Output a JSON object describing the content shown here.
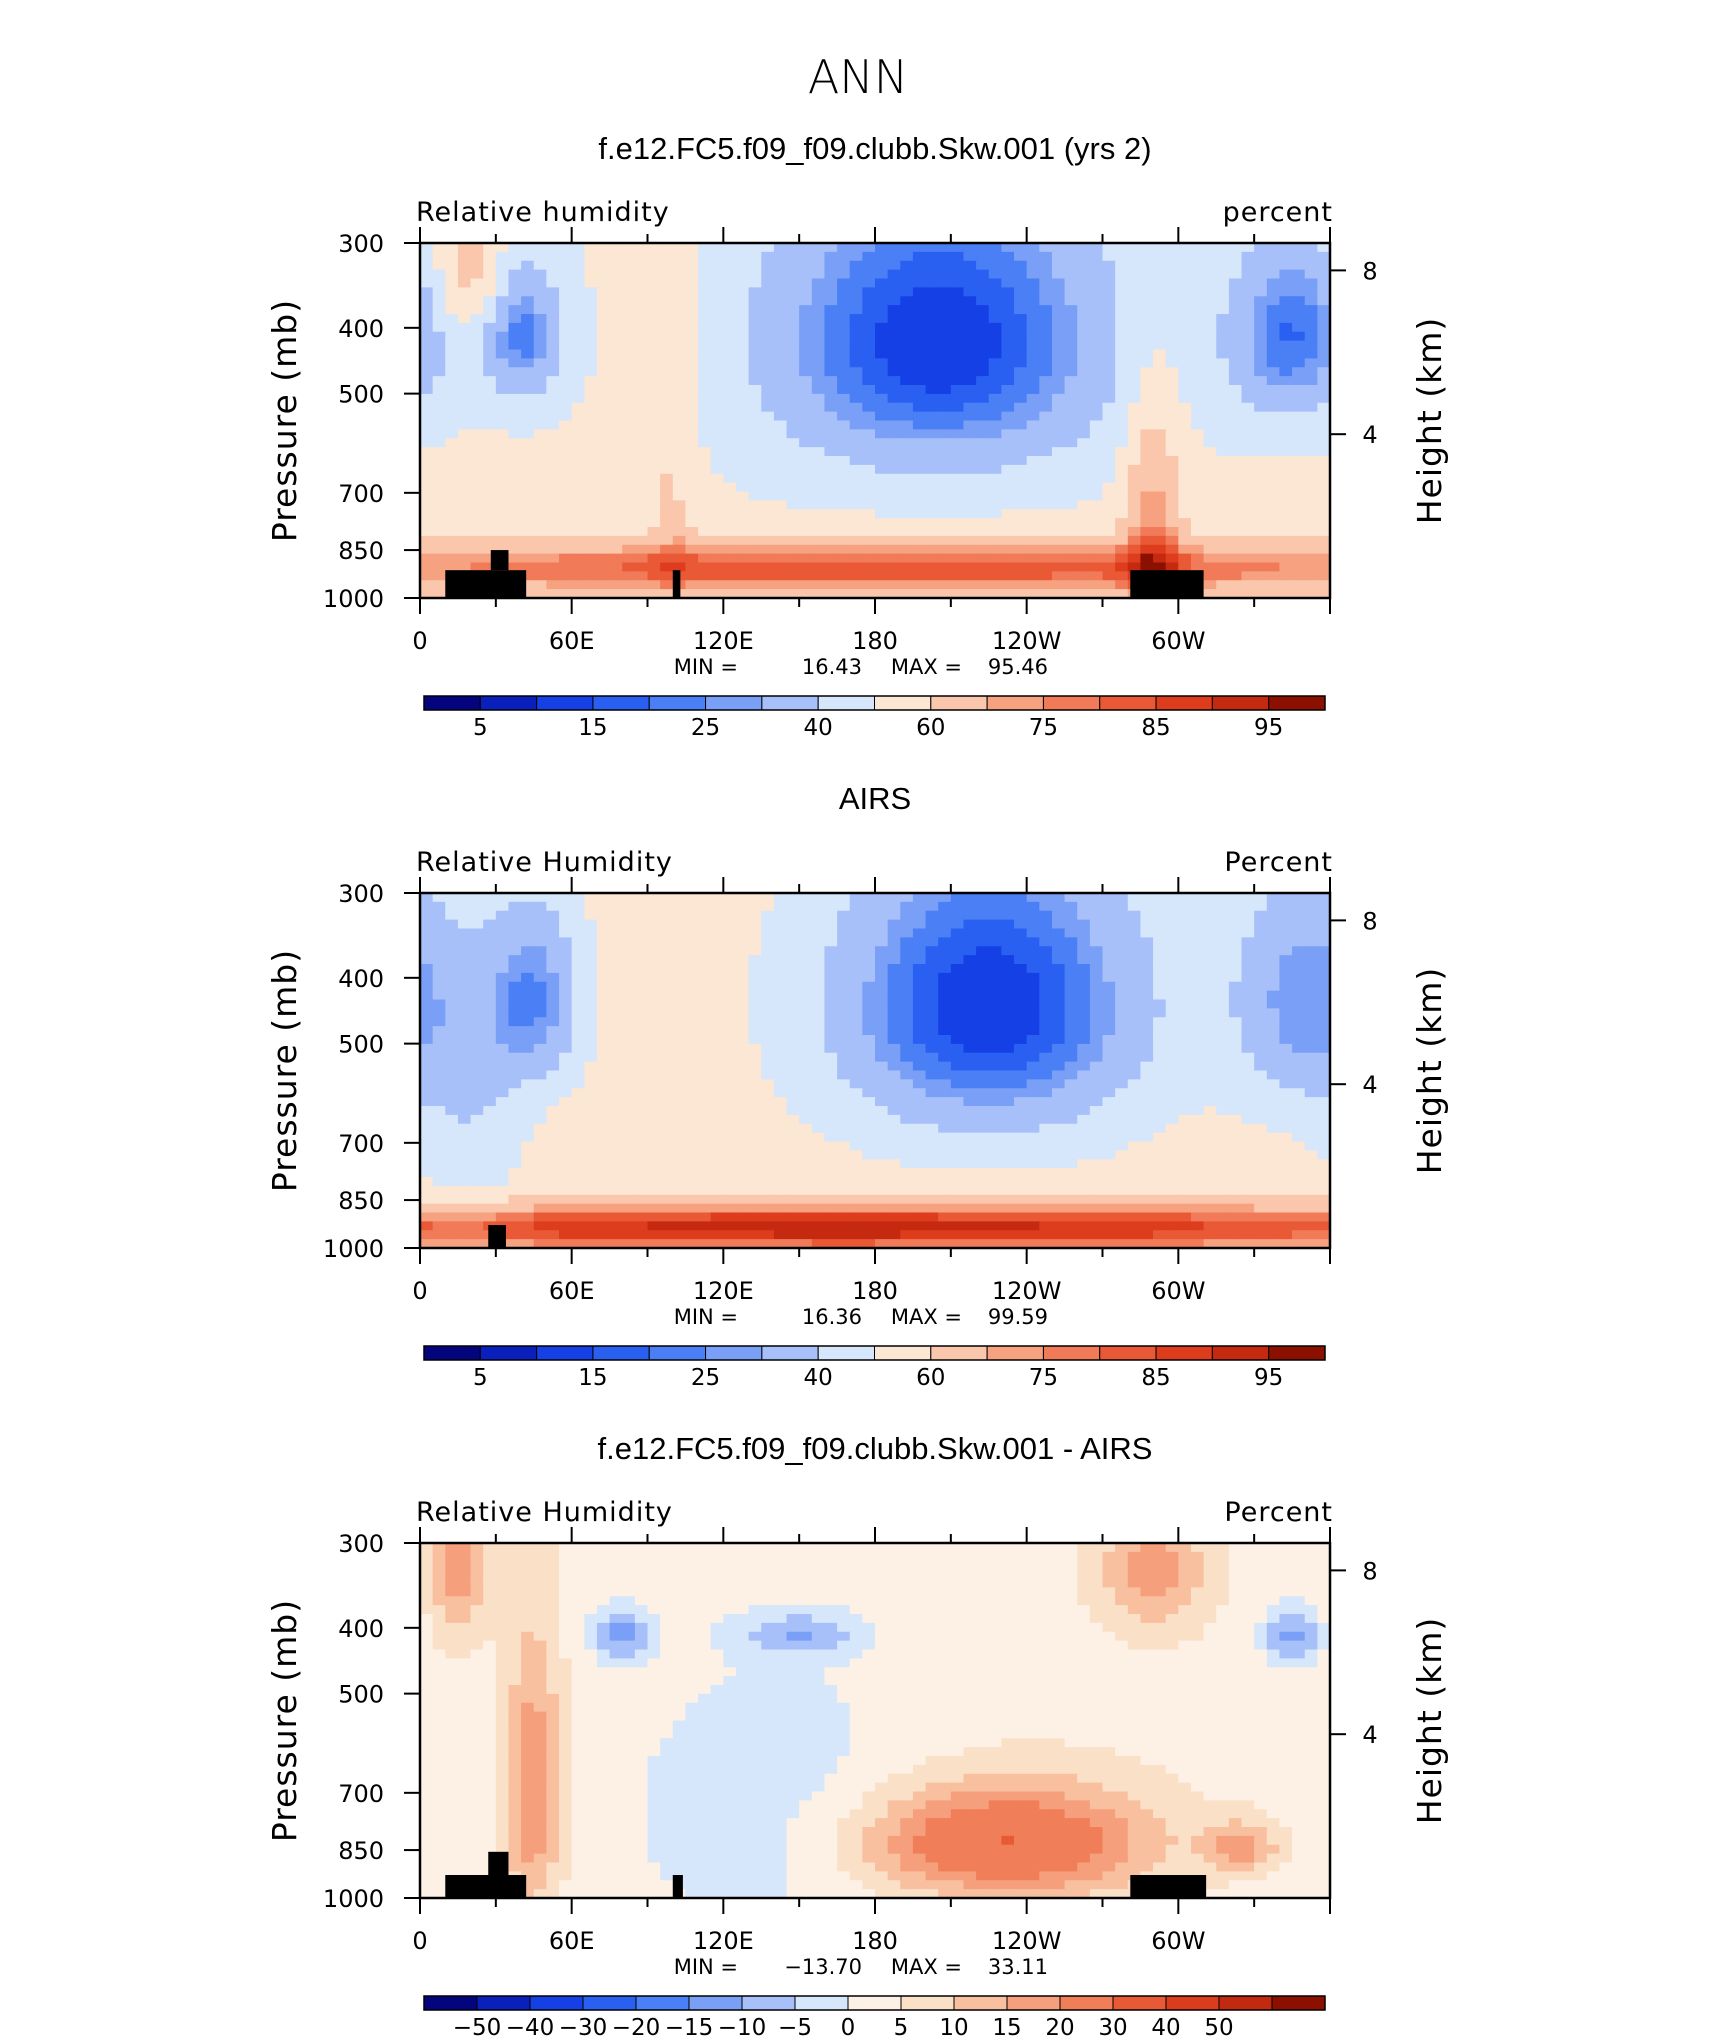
{
  "figure_title": "ANN",
  "colors": {
    "abs_palette": [
      "#04047f",
      "#0a20bd",
      "#1440e6",
      "#2a60f2",
      "#4a7ff5",
      "#7a9ff7",
      "#a7c0f9",
      "#d6e6fb",
      "#fbe7d4",
      "#fac7ac",
      "#f6a180",
      "#f17b59",
      "#ea5936",
      "#dd3c1d",
      "#c52a10",
      "#8c1000"
    ],
    "diff_palette": [
      "#04047f",
      "#0a20bd",
      "#1440e6",
      "#2a60f2",
      "#4a7ff5",
      "#7a9ff7",
      "#a7c0f9",
      "#d6e6fb",
      "#fdf1e6",
      "#fbe0c8",
      "#f9c0a0",
      "#f59f7c",
      "#f07e58",
      "#e85a35",
      "#db3c1d",
      "#c22a10",
      "#8c1000"
    ],
    "land_mask": "#000000"
  },
  "chart_data": [
    {
      "type": "heatmap",
      "title": "f.e12.FC5.f09_f09.clubb.Skw.001 (yrs 2)",
      "left_label": "Relative  humidity",
      "right_label": "percent",
      "ylabel": "Pressure  (mb)",
      "y2label": "Height  (km)",
      "x_ticks": [
        "0",
        "60E",
        "120E",
        "180",
        "120W",
        "60W"
      ],
      "x_tick_lon": [
        0,
        60,
        120,
        180,
        240,
        300
      ],
      "xlim": [
        0,
        360
      ],
      "y_ticks": [
        "300",
        "400",
        "500",
        "700",
        "850",
        "1000"
      ],
      "y_tick_p": [
        300,
        400,
        500,
        700,
        850,
        1000
      ],
      "ylim": [
        1000,
        300
      ],
      "y2_ticks": [
        "8",
        "4"
      ],
      "y2_tick_km": [
        8,
        4
      ],
      "min_label": "MIN =",
      "min_value": "16.43",
      "max_label": "MAX =",
      "max_value": "95.46",
      "colorbar_palette": "abs",
      "colorbar_labels": [
        "5",
        "15",
        "25",
        "40",
        "60",
        "75",
        "85",
        "95"
      ],
      "colorbar_levels": [
        0,
        5,
        10,
        15,
        20,
        25,
        30,
        40,
        50,
        60,
        70,
        75,
        80,
        85,
        90,
        95,
        100
      ],
      "field": {
        "base": 52,
        "blobs": [
          {
            "lon": 40,
            "p": 410,
            "slon": 12,
            "sp": 70,
            "amp": -30
          },
          {
            "lon": 205,
            "p": 420,
            "slon": 48,
            "sp": 150,
            "amp": -42
          },
          {
            "lon": 345,
            "p": 410,
            "slon": 18,
            "sp": 90,
            "amp": -32
          },
          {
            "lon": 180,
            "p": 905,
            "slon": 200,
            "sp": 60,
            "amp": 32
          },
          {
            "lon": 290,
            "p": 780,
            "slon": 8,
            "sp": 230,
            "amp": 22
          },
          {
            "lon": 20,
            "p": 330,
            "slon": 10,
            "sp": 60,
            "amp": 18
          },
          {
            "lon": 100,
            "p": 600,
            "slon": 6,
            "sp": 280,
            "amp": 10
          }
        ]
      },
      "land_mask": [
        {
          "lon0": 10,
          "lon1": 42,
          "p0": 1000,
          "p1": 910
        },
        {
          "lon0": 28,
          "lon1": 35,
          "p0": 910,
          "p1": 850
        },
        {
          "lon0": 100,
          "lon1": 103,
          "p0": 1000,
          "p1": 910
        },
        {
          "lon0": 281,
          "lon1": 310,
          "p0": 1000,
          "p1": 910
        }
      ]
    },
    {
      "type": "heatmap",
      "title": "AIRS",
      "left_label": "Relative  Humidity",
      "right_label": "Percent",
      "ylabel": "Pressure  (mb)",
      "y2label": "Height  (km)",
      "x_ticks": [
        "0",
        "60E",
        "120E",
        "180",
        "120W",
        "60W"
      ],
      "x_tick_lon": [
        0,
        60,
        120,
        180,
        240,
        300
      ],
      "xlim": [
        0,
        360
      ],
      "y_ticks": [
        "300",
        "400",
        "500",
        "700",
        "850",
        "1000"
      ],
      "y_tick_p": [
        300,
        400,
        500,
        700,
        850,
        1000
      ],
      "ylim": [
        1000,
        300
      ],
      "y2_ticks": [
        "8",
        "4"
      ],
      "y2_tick_km": [
        8,
        4
      ],
      "min_label": "MIN =",
      "min_value": "16.36",
      "max_label": "MAX =",
      "max_value": "99.59",
      "colorbar_palette": "abs",
      "colorbar_labels": [
        "5",
        "15",
        "25",
        "40",
        "60",
        "75",
        "85",
        "95"
      ],
      "colorbar_levels": [
        0,
        5,
        10,
        15,
        20,
        25,
        30,
        40,
        50,
        60,
        70,
        75,
        80,
        85,
        90,
        95,
        100
      ],
      "field": {
        "base": 55,
        "blobs": [
          {
            "lon": 45,
            "p": 430,
            "slon": 14,
            "sp": 100,
            "amp": -30
          },
          {
            "lon": 225,
            "p": 440,
            "slon": 45,
            "sp": 160,
            "amp": -45
          },
          {
            "lon": 350,
            "p": 430,
            "slon": 20,
            "sp": 130,
            "amp": -28
          },
          {
            "lon": 170,
            "p": 935,
            "slon": 210,
            "sp": 55,
            "amp": 38
          },
          {
            "lon": 20,
            "p": 650,
            "slon": 15,
            "sp": 200,
            "amp": -12
          }
        ]
      },
      "land_mask": [
        {
          "lon0": 27,
          "lon1": 34,
          "p0": 1000,
          "p1": 925
        }
      ]
    },
    {
      "type": "heatmap",
      "title": "f.e12.FC5.f09_f09.clubb.Skw.001 - AIRS",
      "left_label": "Relative  Humidity",
      "right_label": "Percent",
      "ylabel": "Pressure  (mb)",
      "y2label": "Height  (km)",
      "x_ticks": [
        "0",
        "60E",
        "120E",
        "180",
        "120W",
        "60W"
      ],
      "x_tick_lon": [
        0,
        60,
        120,
        180,
        240,
        300
      ],
      "xlim": [
        0,
        360
      ],
      "y_ticks": [
        "300",
        "400",
        "500",
        "700",
        "850",
        "1000"
      ],
      "y_tick_p": [
        300,
        400,
        500,
        700,
        850,
        1000
      ],
      "ylim": [
        1000,
        300
      ],
      "y2_ticks": [
        "8",
        "4"
      ],
      "y2_tick_km": [
        8,
        4
      ],
      "min_label": "MIN =",
      "min_value": "−13.70",
      "max_label": "MAX =",
      "max_value": "33.11",
      "colorbar_palette": "diff",
      "colorbar_labels": [
        "−50",
        "−40",
        "−30",
        "−20",
        "−15",
        "−10",
        "−5",
        "0",
        "5",
        "10",
        "15",
        "20",
        "30",
        "40",
        "50"
      ],
      "colorbar_levels": [
        -60,
        -50,
        -40,
        -30,
        -20,
        -15,
        -10,
        -5,
        0,
        5,
        10,
        15,
        20,
        30,
        40,
        50,
        60
      ],
      "field": {
        "base": 3,
        "blobs": [
          {
            "lon": 230,
            "p": 830,
            "slon": 40,
            "sp": 110,
            "amp": 28
          },
          {
            "lon": 45,
            "p": 700,
            "slon": 8,
            "sp": 220,
            "amp": 18
          },
          {
            "lon": 15,
            "p": 330,
            "slon": 8,
            "sp": 60,
            "amp": 14
          },
          {
            "lon": 290,
            "p": 330,
            "slon": 15,
            "sp": 50,
            "amp": 15
          },
          {
            "lon": 325,
            "p": 840,
            "slon": 10,
            "sp": 50,
            "amp": 14
          },
          {
            "lon": 80,
            "p": 410,
            "slon": 8,
            "sp": 25,
            "amp": -14
          },
          {
            "lon": 150,
            "p": 410,
            "slon": 15,
            "sp": 20,
            "amp": -12
          },
          {
            "lon": 345,
            "p": 410,
            "slon": 8,
            "sp": 30,
            "amp": -14
          },
          {
            "lon": 140,
            "p": 760,
            "slon": 45,
            "sp": 260,
            "amp": -6
          }
        ]
      },
      "land_mask": [
        {
          "lon0": 10,
          "lon1": 42,
          "p0": 1000,
          "p1": 925
        },
        {
          "lon0": 27,
          "lon1": 35,
          "p0": 925,
          "p1": 855
        },
        {
          "lon0": 100,
          "lon1": 104,
          "p0": 1000,
          "p1": 925
        },
        {
          "lon0": 281,
          "lon1": 311,
          "p0": 1000,
          "p1": 925
        }
      ]
    }
  ]
}
